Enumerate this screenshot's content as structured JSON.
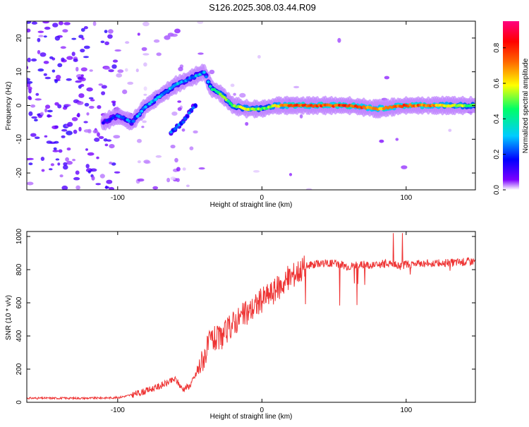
{
  "title": "S126.2025.308.03.44.R09",
  "chart_data": [
    {
      "type": "heatmap",
      "xlabel": "Height of straight line (km)",
      "ylabel": "Frequency (Hz)",
      "xlim": [
        -163,
        148
      ],
      "ylim": [
        -25,
        25
      ],
      "xticks": [
        -100,
        0,
        100
      ],
      "yticks": [
        -20,
        -10,
        0,
        10,
        20
      ],
      "colorbar": {
        "label": "Normalized spectral amplitude",
        "range": [
          0,
          0.95
        ],
        "ticks": [
          "0.0",
          "0.2",
          "0.4",
          "0.6",
          "0.8"
        ],
        "colors": [
          "#ffffff",
          "#7b00ff",
          "#0000ff",
          "#00ccff",
          "#00ff66",
          "#ffff00",
          "#ff6600",
          "#ff0000",
          "#ff0080"
        ]
      },
      "ridge": {
        "x": [
          -110,
          -100,
          -90,
          -80,
          -70,
          -60,
          -50,
          -40,
          -35,
          -30,
          -20,
          -10,
          0,
          10,
          20,
          40,
          60,
          80,
          100,
          120,
          148
        ],
        "freq": [
          -5,
          -3,
          -5,
          0,
          3,
          6,
          8,
          10,
          5,
          4,
          0,
          -1,
          -1,
          0,
          0,
          0,
          0,
          -1,
          0,
          0,
          0
        ],
        "amplitude": [
          0.15,
          0.2,
          0.25,
          0.3,
          0.3,
          0.3,
          0.3,
          0.3,
          0.4,
          0.5,
          0.5,
          0.6,
          0.5,
          0.6,
          0.8,
          0.8,
          0.8,
          0.7,
          0.8,
          0.7,
          0.5
        ]
      },
      "branch": {
        "x": [
          -63,
          -58,
          -55,
          -50,
          -45
        ],
        "freq": [
          -8,
          -6,
          -5,
          -2,
          1
        ],
        "amplitude": [
          0.25,
          0.25,
          0.25,
          0.2,
          0.2
        ]
      }
    },
    {
      "type": "line",
      "xlabel": "Height of straight line (km)",
      "ylabel": "SNR (10 * v/v)",
      "xlim": [
        -163,
        148
      ],
      "ylim": [
        0,
        1030
      ],
      "xticks": [
        -100,
        0,
        100
      ],
      "yticks": [
        0,
        200,
        400,
        600,
        800,
        1000
      ],
      "series": [
        {
          "name": "SNR",
          "color": "#ee3333",
          "x": [
            -163,
            -140,
            -120,
            -100,
            -90,
            -80,
            -70,
            -60,
            -55,
            -50,
            -45,
            -40,
            -35,
            -30,
            -25,
            -20,
            -10,
            0,
            10,
            20,
            30,
            40,
            50,
            60,
            70,
            80,
            90,
            95,
            100,
            110,
            120,
            130,
            148
          ],
          "y": [
            25,
            25,
            25,
            28,
            45,
            70,
            100,
            140,
            80,
            100,
            180,
            280,
            380,
            380,
            420,
            480,
            540,
            620,
            680,
            760,
            820,
            840,
            840,
            820,
            830,
            830,
            840,
            820,
            830,
            840,
            840,
            840,
            850
          ]
        }
      ]
    }
  ]
}
